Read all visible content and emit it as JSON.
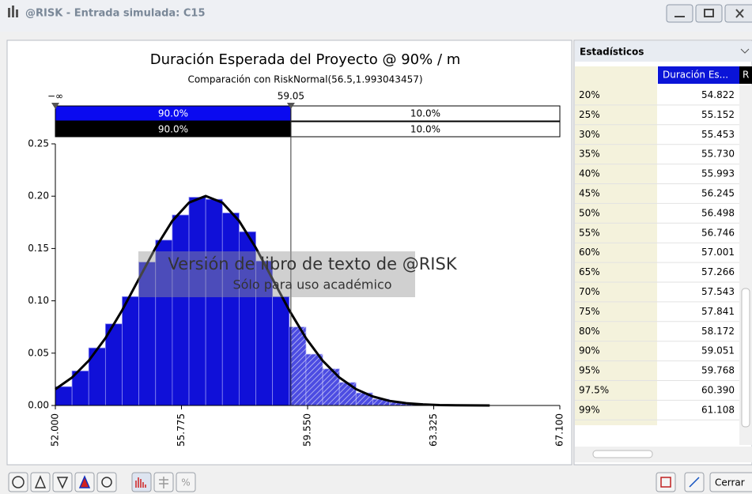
{
  "window": {
    "title": "@RISK - Entrada simulada: C15"
  },
  "chart_data": {
    "type": "histogram",
    "title": "Duración Esperada del Proyecto @ 90% / m",
    "subtitle": "Comparación con RiskNormal(56.5,1.993043457)",
    "bins": [
      52,
      52.5,
      53,
      53.5,
      54,
      54.5,
      55,
      55.5,
      56,
      56.5,
      57,
      57.5,
      58,
      58.5,
      59,
      59.5,
      60,
      60.5,
      61,
      61.5,
      62,
      62.5,
      63,
      63.5,
      64
    ],
    "values": [
      0.018,
      0.033,
      0.055,
      0.078,
      0.104,
      0.137,
      0.158,
      0.182,
      0.199,
      0.197,
      0.184,
      0.166,
      0.138,
      0.104,
      0.075,
      0.049,
      0.035,
      0.022,
      0.012,
      0.006,
      0.003,
      0.002,
      0.001,
      0.0005
    ],
    "color": "#1010d8",
    "fit": {
      "color": "#000000",
      "x": [
        52,
        52.5,
        53,
        53.5,
        54,
        54.5,
        55,
        55.5,
        56,
        56.5,
        57,
        57.5,
        58,
        58.5,
        59,
        59.5,
        60,
        60.5,
        61,
        61.5,
        62,
        62.5,
        63,
        63.5,
        64,
        64.5,
        65
      ],
      "values": [
        0.0156,
        0.0267,
        0.0428,
        0.0644,
        0.091,
        0.1209,
        0.1507,
        0.1763,
        0.1938,
        0.2002,
        0.1938,
        0.1763,
        0.1507,
        0.1209,
        0.091,
        0.0644,
        0.0428,
        0.0267,
        0.0156,
        0.0086,
        0.0044,
        0.0022,
        0.001,
        0.0004,
        0.0002,
        0.0001,
        0
      ]
    },
    "xlim": [
      52,
      67.1
    ],
    "xticks": [
      {
        "value": 52,
        "label": "52.000"
      },
      {
        "value": 55.775,
        "label": "55.775"
      },
      {
        "value": 59.55,
        "label": "59.550"
      },
      {
        "value": 63.325,
        "label": "63.325"
      },
      {
        "value": 67.1,
        "label": "67.100"
      }
    ],
    "ylim": [
      0,
      0.25
    ],
    "yticks": [
      {
        "value": 0,
        "label": "0.00"
      },
      0.05,
      {
        "value": 0.1,
        "label": "0.10"
      },
      0.15,
      {
        "value": 0.2,
        "label": "0.20"
      },
      0.25
    ],
    "delimiter": {
      "lower_label": "−∞",
      "upper": 59.05,
      "simulated": [
        90,
        10
      ],
      "simulated_labels": [
        "90.0%",
        "10.0%"
      ],
      "fitted": [
        90,
        10
      ],
      "fitted_labels": [
        "90.0%",
        "10.0%"
      ]
    },
    "watermark": [
      "Versión de libro de texto de @RISK",
      "Sólo para uso académico"
    ]
  },
  "stats_panel": {
    "title": "Estadísticos",
    "columns": [
      "Duración Es...",
      "R"
    ],
    "rows": [
      [
        "20%",
        "54.822"
      ],
      [
        "25%",
        "55.152"
      ],
      [
        "30%",
        "55.453"
      ],
      [
        "35%",
        "55.730"
      ],
      [
        "40%",
        "55.993"
      ],
      [
        "45%",
        "56.245"
      ],
      [
        "50%",
        "56.498"
      ],
      [
        "55%",
        "56.746"
      ],
      [
        "60%",
        "57.001"
      ],
      [
        "65%",
        "57.266"
      ],
      [
        "70%",
        "57.543"
      ],
      [
        "75%",
        "57.841"
      ],
      [
        "80%",
        "58.172"
      ],
      [
        "90%",
        "59.051"
      ],
      [
        "95%",
        "59.768"
      ],
      [
        "97.5%",
        "60.390"
      ],
      [
        "99%",
        "61.108"
      ]
    ]
  },
  "toolbar": {
    "close_label": "Cerrar"
  }
}
